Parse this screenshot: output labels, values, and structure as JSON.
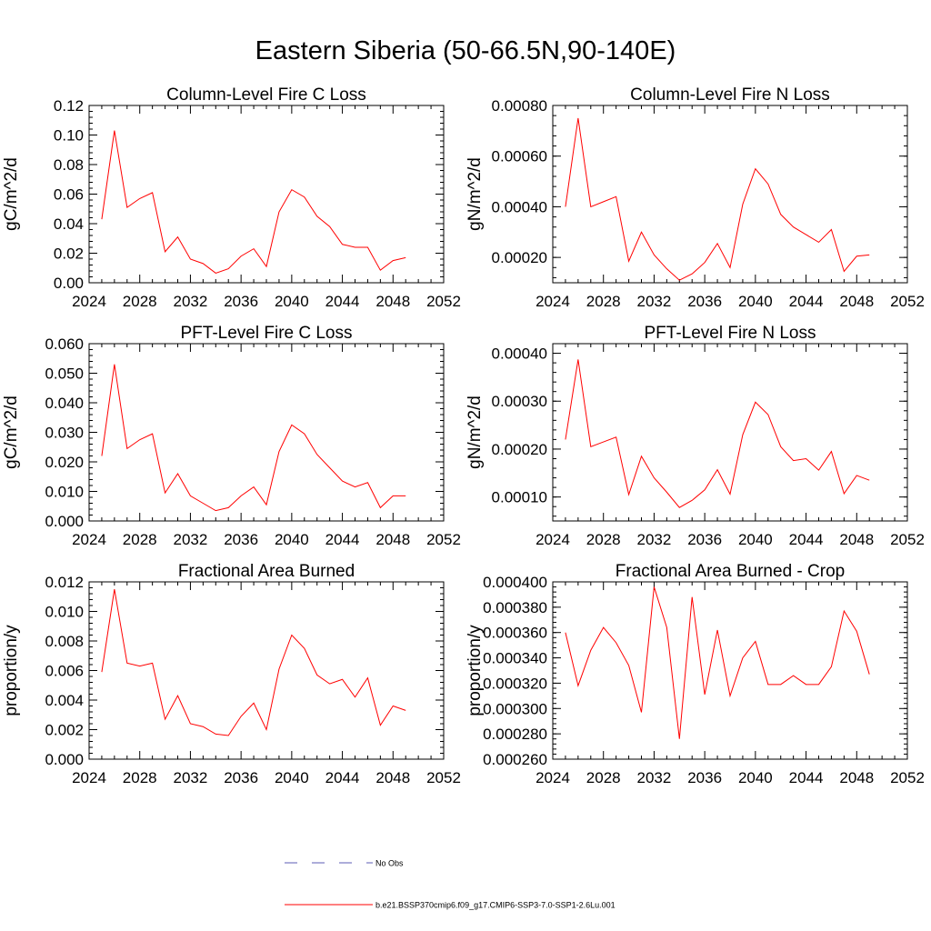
{
  "title": "Eastern Siberia (50-66.5N,90-140E)",
  "legend": {
    "entries": [
      {
        "label": "No Obs",
        "color": "#5b5bb5",
        "style": "dashed"
      },
      {
        "label": "b.e21.BSSP370cmip6.f09_g17.CMIP6-SSP3-7.0-SSP1-2.6Lu.001",
        "color": "#ff0000",
        "style": "solid"
      }
    ]
  },
  "chart_data": [
    {
      "type": "line",
      "title": "Column-Level Fire C Loss",
      "ylabel": "gC/m^2/d",
      "xlim": [
        2024,
        2052
      ],
      "ylim": [
        0,
        0.12
      ],
      "xticks": [
        "2024",
        "2028",
        "2032",
        "2036",
        "2040",
        "2044",
        "2048",
        "2052"
      ],
      "yticks": [
        "0.00",
        "0.02",
        "0.04",
        "0.06",
        "0.08",
        "0.10",
        "0.12"
      ],
      "series": [
        {
          "color": "#ff0000",
          "x": [
            2025,
            2026,
            2027,
            2028,
            2029,
            2030,
            2031,
            2032,
            2033,
            2034,
            2035,
            2036,
            2037,
            2038,
            2039,
            2040,
            2041,
            2042,
            2043,
            2044,
            2045,
            2046,
            2047,
            2048,
            2049
          ],
          "values": [
            0.043,
            0.103,
            0.051,
            0.057,
            0.061,
            0.021,
            0.031,
            0.016,
            0.013,
            0.0065,
            0.0095,
            0.018,
            0.023,
            0.011,
            0.048,
            0.063,
            0.058,
            0.045,
            0.038,
            0.026,
            0.024,
            0.024,
            0.0085,
            0.015,
            0.017
          ]
        }
      ]
    },
    {
      "type": "line",
      "title": "Column-Level Fire N Loss",
      "ylabel": "gN/m^2/d",
      "xlim": [
        2024,
        2052
      ],
      "ylim": [
        0.0001,
        0.0008
      ],
      "xticks": [
        "2024",
        "2028",
        "2032",
        "2036",
        "2040",
        "2044",
        "2048",
        "2052"
      ],
      "yticks": [
        "0.00020",
        "0.00040",
        "0.00060",
        "0.00080"
      ],
      "series": [
        {
          "color": "#ff0000",
          "x": [
            2025,
            2026,
            2027,
            2028,
            2029,
            2030,
            2031,
            2032,
            2033,
            2034,
            2035,
            2036,
            2037,
            2038,
            2039,
            2040,
            2041,
            2042,
            2043,
            2044,
            2045,
            2046,
            2047,
            2048,
            2049
          ],
          "values": [
            0.0004,
            0.00075,
            0.0004,
            0.00042,
            0.00044,
            0.000185,
            0.0003,
            0.00021,
            0.000155,
            0.00011,
            0.000135,
            0.00018,
            0.000255,
            0.00016,
            0.00041,
            0.00055,
            0.00049,
            0.00037,
            0.00032,
            0.00029,
            0.00026,
            0.00031,
            0.000145,
            0.000205,
            0.00021
          ]
        }
      ]
    },
    {
      "type": "line",
      "title": "PFT-Level Fire C Loss",
      "ylabel": "gC/m^2/d",
      "xlim": [
        2024,
        2052
      ],
      "ylim": [
        0,
        0.06
      ],
      "xticks": [
        "2024",
        "2028",
        "2032",
        "2036",
        "2040",
        "2044",
        "2048",
        "2052"
      ],
      "yticks": [
        "0.000",
        "0.010",
        "0.020",
        "0.030",
        "0.040",
        "0.050",
        "0.060"
      ],
      "series": [
        {
          "color": "#ff0000",
          "x": [
            2025,
            2026,
            2027,
            2028,
            2029,
            2030,
            2031,
            2032,
            2033,
            2034,
            2035,
            2036,
            2037,
            2038,
            2039,
            2040,
            2041,
            2042,
            2043,
            2044,
            2045,
            2046,
            2047,
            2048,
            2049
          ],
          "values": [
            0.022,
            0.053,
            0.0245,
            0.0275,
            0.0295,
            0.0095,
            0.016,
            0.0085,
            0.006,
            0.0035,
            0.0045,
            0.0085,
            0.0115,
            0.0055,
            0.0235,
            0.0325,
            0.0295,
            0.0225,
            0.018,
            0.0135,
            0.0115,
            0.013,
            0.0045,
            0.0085,
            0.0085
          ]
        }
      ]
    },
    {
      "type": "line",
      "title": "PFT-Level Fire N Loss",
      "ylabel": "gN/m^2/d",
      "xlim": [
        2024,
        2052
      ],
      "ylim": [
        5e-05,
        0.00042
      ],
      "xticks": [
        "2024",
        "2028",
        "2032",
        "2036",
        "2040",
        "2044",
        "2048",
        "2052"
      ],
      "yticks": [
        "0.00010",
        "0.00020",
        "0.00030",
        "0.00040"
      ],
      "series": [
        {
          "color": "#ff0000",
          "x": [
            2025,
            2026,
            2027,
            2028,
            2029,
            2030,
            2031,
            2032,
            2033,
            2034,
            2035,
            2036,
            2037,
            2038,
            2039,
            2040,
            2041,
            2042,
            2043,
            2044,
            2045,
            2046,
            2047,
            2048,
            2049
          ],
          "values": [
            0.00022,
            0.000387,
            0.000205,
            0.000215,
            0.000225,
            0.000105,
            0.000185,
            0.00014,
            0.00011,
            7.8e-05,
            9.3e-05,
            0.000115,
            0.000157,
            0.000106,
            0.00023,
            0.000298,
            0.000272,
            0.000205,
            0.000176,
            0.00018,
            0.000156,
            0.000195,
            0.000107,
            0.000145,
            0.000135
          ]
        }
      ]
    },
    {
      "type": "line",
      "title": "Fractional Area Burned",
      "ylabel": "proportion/y",
      "xlim": [
        2024,
        2052
      ],
      "ylim": [
        0,
        0.012
      ],
      "xticks": [
        "2024",
        "2028",
        "2032",
        "2036",
        "2040",
        "2044",
        "2048",
        "2052"
      ],
      "yticks": [
        "0.000",
        "0.002",
        "0.004",
        "0.006",
        "0.008",
        "0.010",
        "0.012"
      ],
      "series": [
        {
          "color": "#ff0000",
          "x": [
            2025,
            2026,
            2027,
            2028,
            2029,
            2030,
            2031,
            2032,
            2033,
            2034,
            2035,
            2036,
            2037,
            2038,
            2039,
            2040,
            2041,
            2042,
            2043,
            2044,
            2045,
            2046,
            2047,
            2048,
            2049
          ],
          "values": [
            0.0059,
            0.0115,
            0.0065,
            0.0063,
            0.0065,
            0.0027,
            0.0043,
            0.0024,
            0.0022,
            0.0017,
            0.0016,
            0.0029,
            0.0038,
            0.002,
            0.0061,
            0.0084,
            0.0075,
            0.0057,
            0.0051,
            0.0054,
            0.0042,
            0.0055,
            0.0023,
            0.0036,
            0.0033
          ]
        }
      ]
    },
    {
      "type": "line",
      "title": "Fractional Area Burned - Crop",
      "ylabel": "proportion/y",
      "xlim": [
        2024,
        2052
      ],
      "ylim": [
        0.00026,
        0.0004
      ],
      "xticks": [
        "2024",
        "2028",
        "2032",
        "2036",
        "2040",
        "2044",
        "2048",
        "2052"
      ],
      "yticks": [
        "0.000260",
        "0.000280",
        "0.000300",
        "0.000320",
        "0.000340",
        "0.000360",
        "0.000380",
        "0.000400"
      ],
      "series": [
        {
          "color": "#ff0000",
          "x": [
            2025,
            2026,
            2027,
            2028,
            2029,
            2030,
            2031,
            2032,
            2033,
            2034,
            2035,
            2036,
            2037,
            2038,
            2039,
            2040,
            2041,
            2042,
            2043,
            2044,
            2045,
            2046,
            2047,
            2048,
            2049
          ],
          "values": [
            0.00036,
            0.000318,
            0.000346,
            0.000364,
            0.000352,
            0.000334,
            0.000297,
            0.000396,
            0.000364,
            0.000276,
            0.000388,
            0.000311,
            0.000362,
            0.00031,
            0.00034,
            0.000353,
            0.000319,
            0.000319,
            0.000326,
            0.000319,
            0.000319,
            0.000333,
            0.000377,
            0.000361,
            0.000327
          ]
        }
      ]
    }
  ]
}
